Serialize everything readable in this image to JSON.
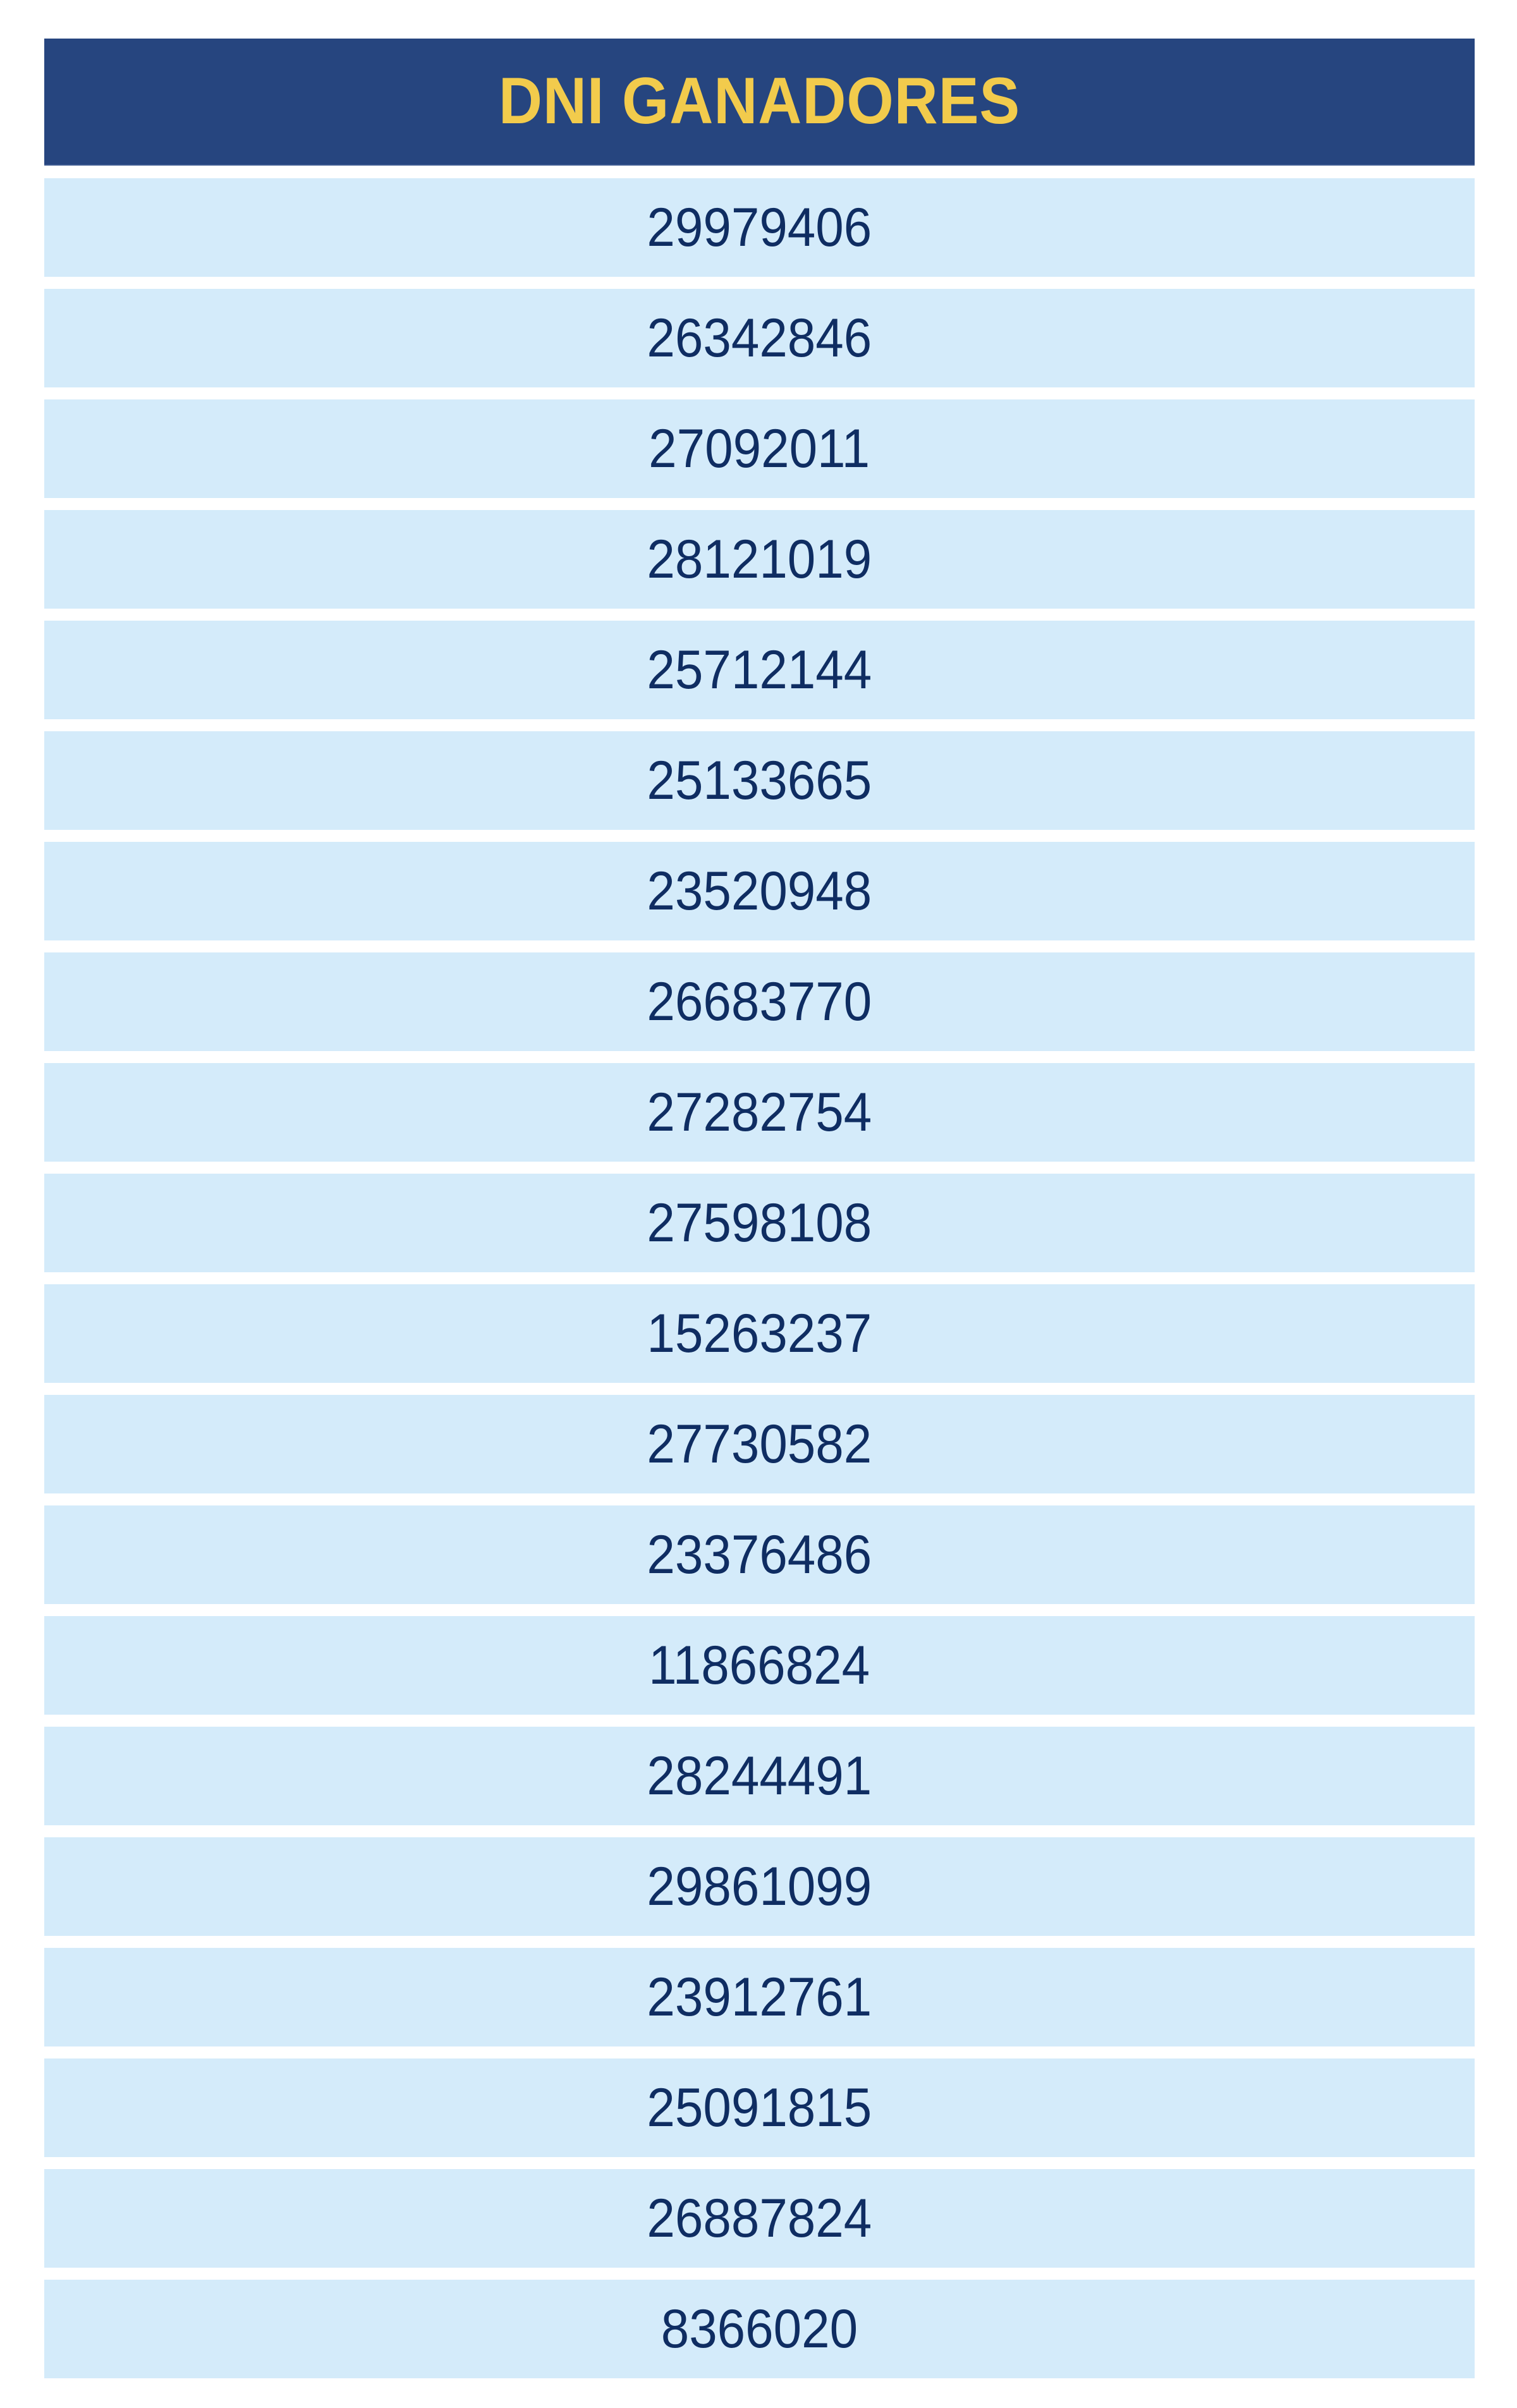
{
  "table": {
    "header": "DNI GANADORES",
    "colors": {
      "header_bg": "#26457f",
      "header_text": "#f2cb4c",
      "row_bg": "#d4ebfa",
      "row_text": "#0f2d62"
    },
    "rows": [
      "29979406",
      "26342846",
      "27092011",
      "28121019",
      "25712144",
      "25133665",
      "23520948",
      "26683770",
      "27282754",
      "27598108",
      "15263237",
      "27730582",
      "23376486",
      "11866824",
      "28244491",
      "29861099",
      "23912761",
      "25091815",
      "26887824",
      "8366020"
    ]
  }
}
